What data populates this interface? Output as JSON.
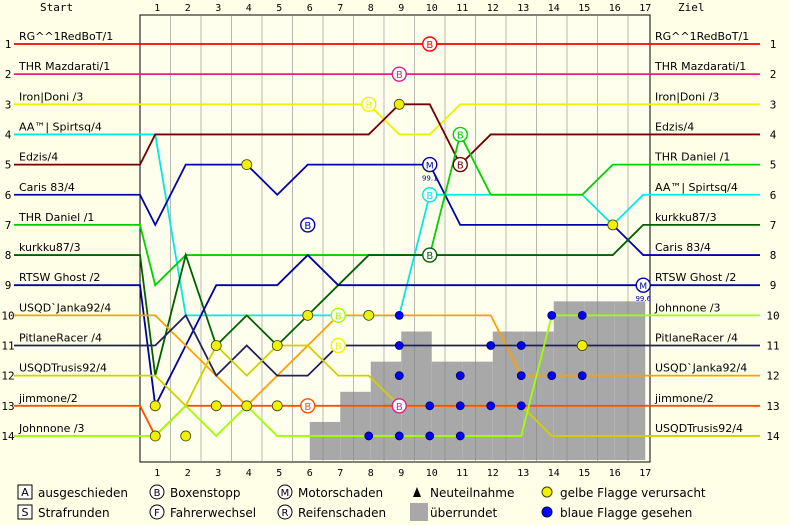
{
  "chart_data": {
    "type": "line",
    "header": {
      "start": "Start",
      "finish": "Ziel"
    },
    "laps": [
      1,
      2,
      3,
      4,
      5,
      6,
      7,
      8,
      9,
      10,
      11,
      12,
      13,
      14,
      15,
      16,
      17
    ],
    "positions": [
      1,
      2,
      3,
      4,
      5,
      6,
      7,
      8,
      9,
      10,
      11,
      12,
      13,
      14
    ],
    "start_grid": [
      "RG^^1RedBoT/1",
      "THR Mazdarati/1",
      "Iron|Doni /3",
      "AA™| Spirtsq/4",
      "Edzis/4",
      "Caris 83/4",
      "THR Daniel /1",
      "kurkku87/3",
      "RTSW Ghost /2",
      "USQD`Janka92/4",
      "PitlaneRacer /4",
      "USQDTrusis92/4",
      "jimmone/2",
      "Johnnone /3"
    ],
    "finish_order": [
      "RG^^1RedBoT/1",
      "THR Mazdarati/1",
      "Iron|Doni /3",
      "Edzis/4",
      "THR Daniel /1",
      "AA™| Spirtsq/4",
      "kurkku87/3",
      "Caris 83/4",
      "RTSW Ghost /2",
      "Johnnone /3",
      "PitlaneRacer /4",
      "USQD`Janka92/4",
      "jimmone/2",
      "USQDTrusis92/4"
    ],
    "series": [
      {
        "name": "RG^^1RedBoT/1",
        "color": "#ff0000",
        "positions": [
          1,
          1,
          1,
          1,
          1,
          1,
          1,
          1,
          1,
          1,
          1,
          1,
          1,
          1,
          1,
          1,
          1
        ]
      },
      {
        "name": "THR Mazdarati/1",
        "color": "#e0208a",
        "positions": [
          2,
          2,
          2,
          2,
          2,
          2,
          2,
          2,
          2,
          2,
          2,
          2,
          2,
          2,
          2,
          2,
          2
        ]
      },
      {
        "name": "Iron|Doni /3",
        "color": "#f0f000",
        "positions": [
          3,
          3,
          3,
          3,
          3,
          3,
          3,
          3,
          4,
          4,
          3,
          3,
          3,
          3,
          3,
          3,
          3
        ]
      },
      {
        "name": "AA™| Spirtsq/4",
        "color": "#00e8e8",
        "positions": [
          4,
          10,
          10,
          10,
          10,
          10,
          10,
          10,
          10,
          6,
          6,
          6,
          6,
          6,
          6,
          7,
          6
        ]
      },
      {
        "name": "Edzis/4",
        "color": "#700000",
        "positions": [
          4,
          4,
          4,
          4,
          4,
          4,
          4,
          4,
          3,
          3,
          5,
          4,
          4,
          4,
          4,
          4,
          4
        ]
      },
      {
        "name": "Caris 83/4",
        "color": "#0000b0",
        "positions": [
          7,
          5,
          5,
          5,
          6,
          5,
          5,
          5,
          5,
          5,
          7,
          7,
          7,
          7,
          7,
          7,
          8
        ]
      },
      {
        "name": "THR Daniel /1",
        "color": "#00d000",
        "positions": [
          9,
          8,
          8,
          8,
          8,
          8,
          8,
          8,
          8,
          8,
          4,
          6,
          6,
          6,
          6,
          5,
          5
        ]
      },
      {
        "name": "kurkku87/3",
        "color": "#006000",
        "positions": [
          12,
          8,
          11,
          10,
          11,
          10,
          9,
          8,
          8,
          8,
          8,
          8,
          8,
          8,
          8,
          8,
          7
        ]
      },
      {
        "name": "RTSW Ghost /2",
        "color": "#0000a0",
        "positions": [
          13,
          11,
          9,
          9,
          9,
          8,
          9,
          9,
          9,
          9,
          9,
          9,
          9,
          9,
          9,
          9,
          9
        ]
      },
      {
        "name": "USQD`Janka92/4",
        "color": "#ffa000",
        "positions": [
          10,
          11,
          12,
          13,
          12,
          11,
          10,
          10,
          10,
          10,
          10,
          10,
          12,
          12,
          12,
          12,
          12
        ]
      },
      {
        "name": "PitlaneRacer /4",
        "color": "#202060",
        "positions": [
          11,
          10,
          12,
          11,
          12,
          12,
          11,
          11,
          11,
          11,
          11,
          11,
          11,
          11,
          11,
          11,
          11
        ]
      },
      {
        "name": "USQDTrusis92/4",
        "color": "#d0d000",
        "positions": [
          12,
          13,
          11,
          12,
          11,
          11,
          12,
          12,
          13,
          13,
          13,
          13,
          13,
          14,
          14,
          14,
          14
        ]
      },
      {
        "name": "jimmone/2",
        "color": "#ff5000",
        "positions": [
          14,
          13,
          13,
          13,
          13,
          13,
          13,
          13,
          13,
          13,
          13,
          13,
          13,
          13,
          13,
          13,
          13
        ]
      },
      {
        "name": "Johnnone /3",
        "color": "#a0ff00",
        "positions": [
          14,
          13,
          14,
          13,
          14,
          14,
          14,
          14,
          14,
          14,
          14,
          14,
          14,
          10,
          10,
          10,
          10
        ]
      }
    ],
    "pit_markers": [
      {
        "lap": 10,
        "pos": 1,
        "letter": "B",
        "color": "#ff0000"
      },
      {
        "lap": 9,
        "pos": 2,
        "letter": "B",
        "color": "#e0208a"
      },
      {
        "lap": 8,
        "pos": 3,
        "letter": "B",
        "color": "#f0f000"
      },
      {
        "lap": 11,
        "pos": 4,
        "letter": "B",
        "color": "#00d000"
      },
      {
        "lap": 11,
        "pos": 5,
        "letter": "B",
        "color": "#700000"
      },
      {
        "lap": 10,
        "pos": 6,
        "letter": "B",
        "color": "#00e8e8"
      },
      {
        "lap": 6,
        "pos": 7,
        "letter": "B",
        "color": "#0000b0"
      },
      {
        "lap": 10,
        "pos": 8,
        "letter": "B",
        "color": "#006000"
      },
      {
        "lap": 7,
        "pos": 10,
        "letter": "B",
        "color": "#a0ff00"
      },
      {
        "lap": 7,
        "pos": 11,
        "letter": "B",
        "color": "#f0f000"
      },
      {
        "lap": 6,
        "pos": 13,
        "letter": "B",
        "color": "#ff5000"
      },
      {
        "lap": 9,
        "pos": 13,
        "letter": "B",
        "color": "#e0208a"
      }
    ],
    "engine_failures": [
      {
        "lap": 10,
        "pos": 5,
        "label": "99.1"
      },
      {
        "lap": 17,
        "pos": 9,
        "label": "99.6"
      }
    ],
    "yellow_flags": [
      [
        9,
        3
      ],
      [
        4,
        5
      ],
      [
        16,
        7
      ],
      [
        6,
        10
      ],
      [
        8,
        10
      ],
      [
        3,
        11
      ],
      [
        5,
        11
      ],
      [
        15,
        11
      ],
      [
        1,
        13
      ],
      [
        3,
        13
      ],
      [
        4,
        13
      ],
      [
        5,
        13
      ],
      [
        1,
        14
      ],
      [
        2,
        14
      ]
    ],
    "blue_flags": [
      [
        9,
        10
      ],
      [
        14,
        10
      ],
      [
        15,
        10
      ],
      [
        9,
        11
      ],
      [
        12,
        11
      ],
      [
        13,
        11
      ],
      [
        13,
        12
      ],
      [
        11,
        12
      ],
      [
        14,
        12
      ],
      [
        15,
        12
      ],
      [
        9,
        12
      ],
      [
        9,
        13
      ],
      [
        10,
        13
      ],
      [
        11,
        13
      ],
      [
        12,
        13
      ],
      [
        13,
        13
      ],
      [
        8,
        14
      ],
      [
        9,
        14
      ],
      [
        10,
        14
      ],
      [
        11,
        14
      ]
    ],
    "lapped_bars": [
      [
        6,
        14
      ],
      [
        7,
        13
      ],
      [
        8,
        12
      ],
      [
        9,
        11
      ],
      [
        10,
        12
      ],
      [
        11,
        12
      ],
      [
        12,
        11
      ],
      [
        13,
        11
      ],
      [
        14,
        10
      ],
      [
        15,
        10
      ],
      [
        16,
        10
      ]
    ],
    "legend": [
      {
        "symbol": "A",
        "shape": "box",
        "label": "ausgeschieden"
      },
      {
        "symbol": "B",
        "shape": "circle",
        "label": "Boxenstopp"
      },
      {
        "symbol": "M",
        "shape": "gear",
        "label": "Motorschaden"
      },
      {
        "symbol": "▲",
        "shape": "triangle",
        "label": "Neuteilnahme"
      },
      {
        "symbol": "",
        "shape": "yellow-dot",
        "label": "gelbe Flagge verursacht"
      },
      {
        "symbol": "S",
        "shape": "box",
        "label": "Strafrunden"
      },
      {
        "symbol": "F",
        "shape": "circle",
        "label": "Fahrerwechsel"
      },
      {
        "symbol": "R",
        "shape": "gear",
        "label": "Reifenschaden"
      },
      {
        "symbol": "",
        "shape": "gray-box",
        "label": "überrundet"
      },
      {
        "symbol": "",
        "shape": "blue-dot",
        "label": "blaue Flagge gesehen"
      }
    ]
  }
}
